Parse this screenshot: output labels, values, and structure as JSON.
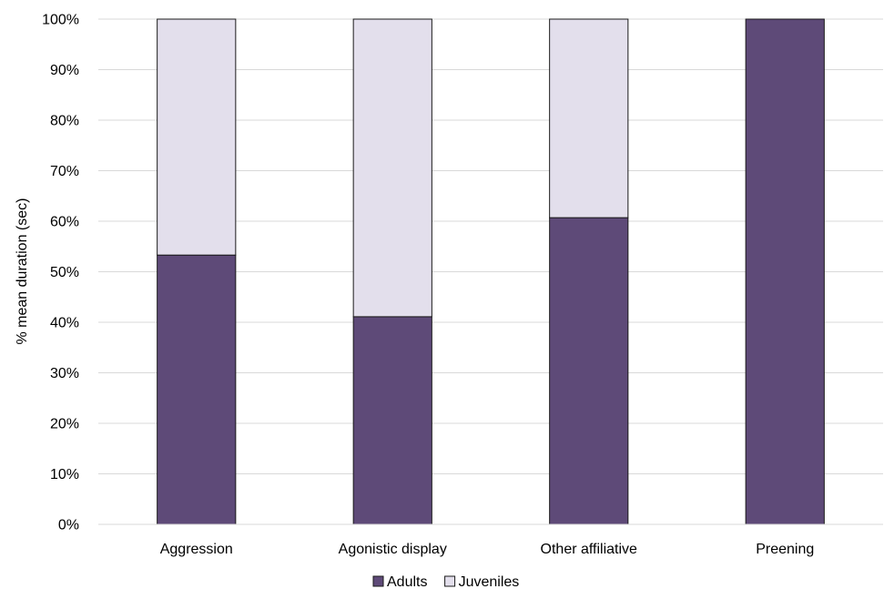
{
  "chart_data": {
    "type": "bar",
    "stacked": true,
    "percent_stacked": true,
    "title": "",
    "xlabel": "",
    "ylabel": "% mean duration (sec)",
    "ylim": [
      0,
      100
    ],
    "yticks": [
      "0%",
      "10%",
      "20%",
      "30%",
      "40%",
      "50%",
      "60%",
      "70%",
      "80%",
      "90%",
      "100%"
    ],
    "categories": [
      "Aggression",
      "Agonistic display",
      "Other affiliative",
      "Preening"
    ],
    "series": [
      {
        "name": "Adults",
        "values": [
          53.3,
          41.1,
          60.7,
          100
        ],
        "color": "#5e4a78"
      },
      {
        "name": "Juveniles",
        "values": [
          46.7,
          58.9,
          39.3,
          0
        ],
        "color": "#e3dfec"
      }
    ],
    "grid": true,
    "legend_position": "bottom"
  }
}
